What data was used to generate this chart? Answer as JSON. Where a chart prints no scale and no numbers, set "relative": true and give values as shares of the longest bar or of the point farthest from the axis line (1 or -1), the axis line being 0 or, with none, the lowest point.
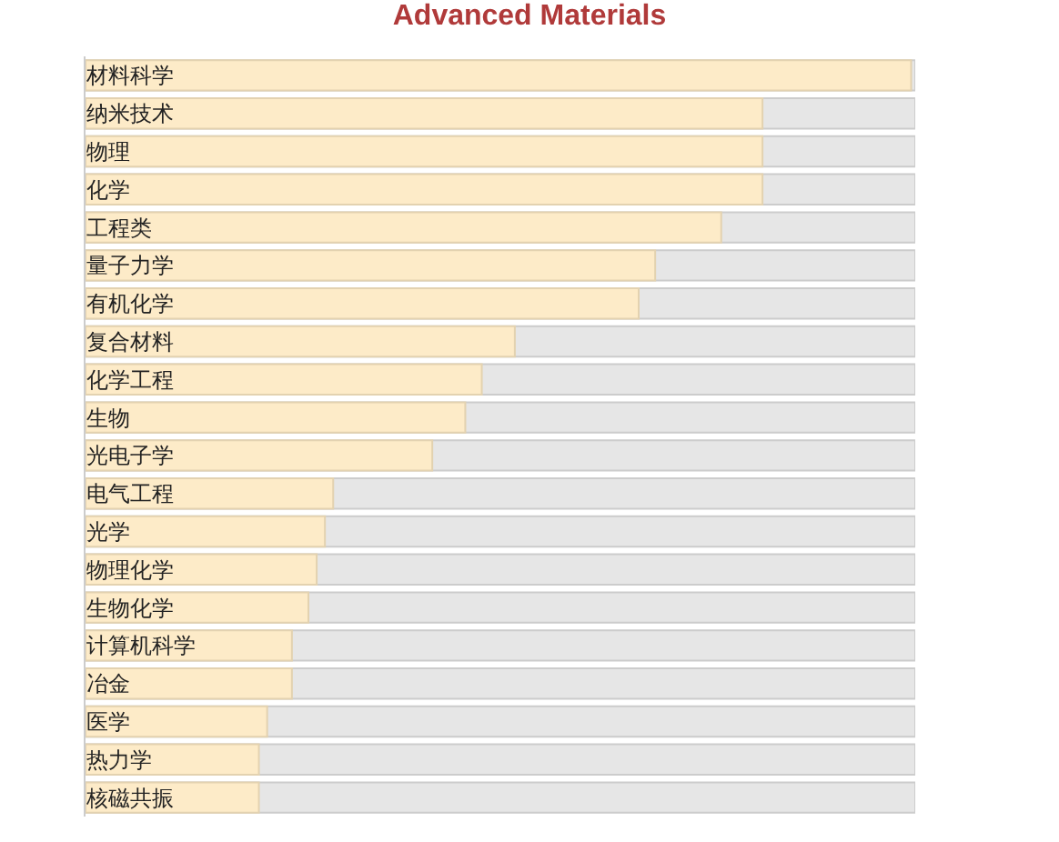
{
  "chart_data": {
    "type": "bar",
    "orientation": "horizontal",
    "relative": true,
    "title": "Advanced Materials",
    "categories": [
      "材料科学",
      "纳米技术",
      "物理",
      "化学",
      "工程类",
      "量子力学",
      "有机化学",
      "复合材料",
      "化学工程",
      "生物",
      "光电子学",
      "电气工程",
      "光学",
      "物理化学",
      "生物化学",
      "计算机科学",
      "冶金",
      "医学",
      "热力学",
      "核磁共振"
    ],
    "values": [
      1,
      0.82,
      0.82,
      0.82,
      0.77,
      0.69,
      0.67,
      0.52,
      0.48,
      0.46,
      0.42,
      0.3,
      0.29,
      0.28,
      0.27,
      0.25,
      0.25,
      0.22,
      0.21,
      0.21
    ],
    "color": "#fdebc8"
  }
}
